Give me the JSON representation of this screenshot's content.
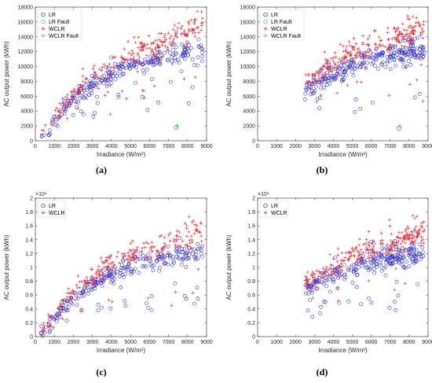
{
  "figure": {
    "colors": {
      "lr": "#1f1fcf",
      "lr_fault": "#2fc82f",
      "wclr": "#e8202a",
      "wclr_fault": "#2fc82f",
      "axis": "#262626"
    }
  },
  "chart_data": [
    {
      "panel": "(a)",
      "type": "scatter",
      "xlabel": "Irradiance (W/m²)",
      "ylabel": "AC output power (kWh)",
      "xlim": [
        0,
        9000
      ],
      "ylim": [
        0,
        18000
      ],
      "xticks": [
        "0",
        "1000",
        "2000",
        "3000",
        "4000",
        "5000",
        "6000",
        "7000",
        "8000",
        "9000"
      ],
      "yticks": [
        "0",
        "2000",
        "4000",
        "6000",
        "8000",
        "10000",
        "12000",
        "14000",
        "16000",
        "18000"
      ],
      "exponent": "",
      "legend_position": "top-left",
      "legend": [
        {
          "label": "LR",
          "marker": "circle",
          "color": "#1f1fcf"
        },
        {
          "label": "LR Fault",
          "marker": "circle",
          "color": "#2fc82f"
        },
        {
          "label": "WCLR",
          "marker": "plus",
          "color": "#e8202a"
        },
        {
          "label": "WCLR Fault",
          "marker": "plus",
          "color": "#2fc82f"
        }
      ],
      "x_min": 300,
      "x_max": 8800,
      "fault_points": [
        {
          "x": 7400,
          "y": 1800
        },
        {
          "x": 7450,
          "y": 2000
        }
      ]
    },
    {
      "panel": "(b)",
      "type": "scatter",
      "xlabel": "Irradiance (W/m²)",
      "ylabel": "AC output power (kWh)",
      "xlim": [
        0,
        9000
      ],
      "ylim": [
        0,
        18000
      ],
      "xticks": [
        "0",
        "1000",
        "2000",
        "3000",
        "4000",
        "5000",
        "6000",
        "7000",
        "8000",
        "9000"
      ],
      "yticks": [
        "0",
        "2000",
        "4000",
        "6000",
        "8000",
        "10000",
        "12000",
        "14000",
        "16000",
        "18000"
      ],
      "exponent": "",
      "legend_position": "top-left",
      "legend": [
        {
          "label": "LR",
          "marker": "circle",
          "color": "#1f1fcf"
        },
        {
          "label": "LR Fault",
          "marker": "circle",
          "color": "#2fc82f"
        },
        {
          "label": "WCLR",
          "marker": "plus",
          "color": "#e8202a"
        },
        {
          "label": "WCLR Fault",
          "marker": "plus",
          "color": "#2fc82f"
        }
      ],
      "x_min": 2500,
      "x_max": 8800,
      "fault_points": [
        {
          "x": 7450,
          "y": 1700
        },
        {
          "x": 7500,
          "y": 2000
        }
      ]
    },
    {
      "panel": "(c)",
      "type": "scatter",
      "xlabel": "Irradiance (W/m²)",
      "ylabel": "AC output power (kWh)",
      "xlim": [
        0,
        9000
      ],
      "ylim": [
        0,
        2
      ],
      "xticks": [
        "0",
        "1000",
        "2000",
        "3000",
        "4000",
        "5000",
        "6000",
        "7000",
        "8000",
        "9000"
      ],
      "yticks": [
        "0",
        "0.2",
        "0.4",
        "0.6",
        "0.8",
        "1",
        "1.2",
        "1.4",
        "1.6",
        "1.8",
        "2"
      ],
      "exponent": "×10⁴",
      "legend_position": "top-left",
      "legend": [
        {
          "label": "LR",
          "marker": "circle",
          "color": "#1f1fcf"
        },
        {
          "label": "WCLR",
          "marker": "plus",
          "color": "#e8202a"
        }
      ],
      "x_min": 300,
      "x_max": 8800,
      "fault_points": []
    },
    {
      "panel": "(d)",
      "type": "scatter",
      "xlabel": "Irradiance (W/m²)",
      "ylabel": "AC output power (kWh)",
      "xlim": [
        0,
        9000
      ],
      "ylim": [
        0,
        2
      ],
      "xticks": [
        "0",
        "1000",
        "2000",
        "3000",
        "4000",
        "5000",
        "6000",
        "7000",
        "8000",
        "9000"
      ],
      "yticks": [
        "0",
        "0.2",
        "0.4",
        "0.6",
        "0.8",
        "1",
        "1.2",
        "1.4",
        "1.6",
        "1.8",
        "2"
      ],
      "exponent": "×10⁴",
      "legend_position": "top-left",
      "legend": [
        {
          "label": "LR",
          "marker": "circle",
          "color": "#1f1fcf"
        },
        {
          "label": "WCLR",
          "marker": "plus",
          "color": "#e8202a"
        }
      ],
      "x_min": 2500,
      "x_max": 8800,
      "fault_points": []
    }
  ]
}
